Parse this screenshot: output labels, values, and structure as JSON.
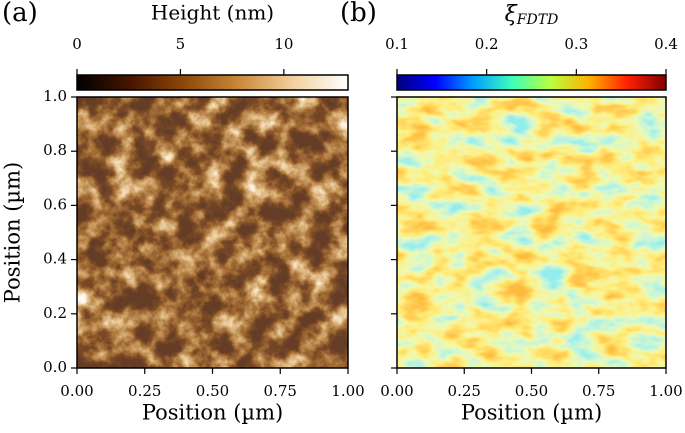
{
  "chart_data": [
    {
      "type": "heatmap",
      "panel_label": "(a)",
      "colorbar_label": "Height (nm)",
      "colormap": "afmhot",
      "clim": [
        0,
        13.1
      ],
      "cticks": [
        0,
        5,
        10
      ],
      "xlabel": "Position (µm)",
      "ylabel": "Position (µm)",
      "xlim": [
        0,
        1
      ],
      "ylim": [
        0,
        1
      ],
      "show_ytick_labels": true,
      "xticks": [
        {
          "value": 0,
          "label": "0.00"
        },
        {
          "value": 0.25,
          "label": "0.25"
        },
        {
          "value": 0.5,
          "label": "0.50"
        },
        {
          "value": 0.75,
          "label": "0.75"
        },
        {
          "value": 1,
          "label": "1.00"
        }
      ],
      "yticks": [
        {
          "value": 0,
          "label": "0.0"
        },
        {
          "value": 0.2,
          "label": "0.2"
        },
        {
          "value": 0.4,
          "label": "0.4"
        },
        {
          "value": 0.6,
          "label": "0.6"
        },
        {
          "value": 0.8,
          "label": "0.8"
        },
        {
          "value": 1,
          "label": "1.0"
        }
      ]
    },
    {
      "type": "heatmap",
      "panel_label": "(b)",
      "colorbar_label": "ξ",
      "colorbar_label_sub": "FDTD",
      "colormap": "jet",
      "clim": [
        0.1,
        0.4
      ],
      "cticks": [
        0.1,
        0.2,
        0.3,
        0.4
      ],
      "xlabel": "Position (µm)",
      "xlim": [
        0,
        1
      ],
      "ylim": [
        0,
        1
      ],
      "show_ytick_labels": false,
      "xticks": [
        {
          "value": 0,
          "label": "0.00"
        },
        {
          "value": 0.25,
          "label": "0.25"
        },
        {
          "value": 0.5,
          "label": "0.50"
        },
        {
          "value": 0.75,
          "label": "0.75"
        },
        {
          "value": 1,
          "label": "1.00"
        }
      ],
      "yticks": [
        0,
        0.2,
        0.4,
        0.6,
        0.8,
        1
      ]
    }
  ]
}
